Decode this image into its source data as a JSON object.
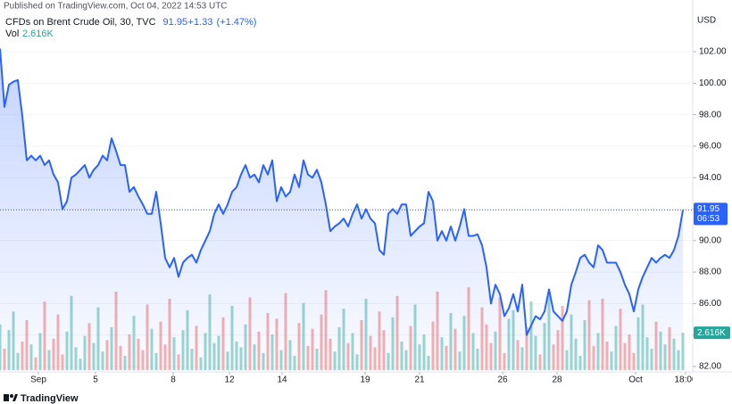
{
  "chart_data": {
    "type": "line",
    "publisher": "Published on TradingView.com, Oct 04, 2022 14:53 UTC",
    "title": "CFDs on Brent Crude Oil, 30, TVC",
    "change": "+1.33",
    "change_pct": "(+1.47%)",
    "countdown": "06:53",
    "y_unit": "USD",
    "brand": "TradingView",
    "xlim": [
      0,
      155
    ],
    "xticks": [
      {
        "value": 8.6,
        "label": "Sep"
      },
      {
        "value": 21.4,
        "label": "5"
      },
      {
        "value": 38.8,
        "label": "8"
      },
      {
        "value": 51.4,
        "label": "12"
      },
      {
        "value": 63.2,
        "label": "14"
      },
      {
        "value": 81.8,
        "label": "19"
      },
      {
        "value": 94,
        "label": "21"
      },
      {
        "value": 112.6,
        "label": "26"
      },
      {
        "value": 124.8,
        "label": "28"
      },
      {
        "value": 142.4,
        "label": "Oct"
      },
      {
        "value": 153.6,
        "label": "18:00"
      }
    ],
    "ylim": [
      81.77,
      104.44
    ],
    "yticks": [
      {
        "value": 82,
        "label": "82.00"
      },
      {
        "value": 84,
        "label": "84.00"
      },
      {
        "value": 86,
        "label": "86.00"
      },
      {
        "value": 88,
        "label": "88.00"
      },
      {
        "value": 90,
        "label": "90.00"
      },
      {
        "value": 92,
        "label": "92.00"
      },
      {
        "value": 94,
        "label": "94.00"
      },
      {
        "value": 96,
        "label": "96.00"
      },
      {
        "value": 98,
        "label": "98.00"
      },
      {
        "value": 100,
        "label": "100.00"
      },
      {
        "value": 102,
        "label": "102.00"
      }
    ],
    "series": [
      {
        "name": "Brent",
        "color": "#2962ff",
        "values": [
          102.2,
          98.5,
          99.9,
          100.1,
          100.2,
          97.9,
          95.1,
          95.4,
          95.1,
          95.4,
          94.8,
          95.1,
          94.2,
          93.7,
          92.0,
          92.5,
          94.0,
          94.2,
          94.5,
          94.8,
          94.0,
          94.5,
          94.8,
          95.4,
          95.1,
          96.5,
          95.7,
          94.8,
          94.8,
          93.1,
          93.4,
          92.8,
          92.3,
          91.7,
          91.7,
          93.1,
          91.1,
          88.9,
          88.3,
          88.9,
          87.7,
          88.6,
          88.9,
          89.1,
          88.6,
          89.4,
          90.0,
          90.6,
          91.7,
          92.3,
          91.7,
          92.3,
          93.1,
          93.4,
          94.2,
          94.8,
          94.0,
          94.2,
          93.7,
          94.8,
          94.2,
          95.1,
          92.5,
          93.4,
          92.8,
          93.1,
          94.2,
          93.4,
          95.1,
          94.2,
          94.0,
          94.5,
          93.7,
          92.3,
          90.6,
          90.9,
          91.1,
          91.4,
          90.9,
          91.7,
          92.3,
          91.4,
          92.0,
          91.4,
          91.1,
          89.4,
          89.1,
          91.7,
          92.0,
          91.7,
          92.3,
          92.3,
          90.3,
          90.6,
          90.9,
          91.1,
          93.1,
          92.5,
          90.0,
          90.6,
          90.0,
          90.9,
          90.0,
          90.9,
          92.0,
          90.3,
          90.3,
          90.4,
          89.7,
          88.3,
          86.0,
          87.2,
          86.6,
          85.2,
          85.7,
          86.6,
          85.5,
          87.2,
          84.0,
          84.6,
          85.2,
          85.0,
          85.5,
          86.9,
          85.5,
          85.2,
          84.9,
          85.5,
          87.2,
          88.0,
          88.9,
          89.1,
          88.6,
          88.3,
          89.7,
          89.4,
          88.6,
          88.6,
          88.6,
          88.0,
          87.2,
          86.6,
          85.5,
          86.9,
          87.7,
          88.3,
          88.9,
          88.6,
          88.9,
          89.1,
          88.9,
          89.4,
          90.3,
          91.95
        ]
      }
    ],
    "volume": {
      "name": "Vol",
      "ylim": [
        0,
        25
      ],
      "up_color": "#26a69a",
      "down_color": "#ef5350",
      "last_label": "2.616K",
      "values": [
        3.2,
        1.5,
        2.8,
        4.1,
        1.2,
        2.0,
        3.5,
        1.8,
        0.9,
        2.6,
        4.8,
        1.4,
        2.2,
        3.9,
        1.1,
        2.7,
        5.2,
        1.6,
        0.8,
        2.4,
        3.3,
        1.9,
        4.4,
        1.3,
        2.1,
        3.0,
        5.5,
        1.7,
        1.0,
        2.5,
        3.8,
        2.2,
        1.4,
        4.6,
        2.9,
        1.2,
        3.4,
        1.8,
        5.0,
        2.3,
        1.1,
        2.8,
        4.2,
        1.5,
        3.1,
        0.9,
        2.6,
        5.3,
        1.9,
        2.4,
        3.7,
        1.3,
        4.5,
        2.0,
        1.6,
        3.2,
        5.1,
        1.8,
        2.7,
        1.2,
        4.0,
        2.5,
        3.6,
        1.4,
        5.4,
        2.1,
        1.0,
        3.3,
        4.7,
        1.7,
        2.9,
        1.5,
        3.9,
        5.6,
        2.2,
        1.3,
        3.0,
        4.3,
        1.9,
        2.6,
        1.1,
        3.5,
        5.0,
        2.4,
        1.6,
        4.1,
        2.8,
        1.2,
        3.7,
        5.2,
        2.0,
        1.4,
        3.1,
        4.6,
        1.8,
        2.5,
        1.0,
        3.4,
        5.5,
        2.3,
        1.7,
        4.0,
        2.9,
        1.3,
        3.8,
        5.8,
        2.6,
        1.5,
        4.4,
        3.2,
        1.9,
        2.7,
        5.1,
        1.2,
        3.6,
        4.2,
        2.1,
        1.6,
        3.0,
        4.8,
        2.4,
        1.1,
        3.3,
        5.3,
        1.8,
        2.8,
        4.5,
        1.4,
        3.9,
        2.2,
        1.0,
        3.5,
        4.9,
        1.7,
        2.6,
        5.0,
        2.0,
        1.3,
        3.1,
        4.3,
        1.9,
        2.5,
        1.2,
        3.7,
        4.6,
        2.3,
        1.5,
        3.4,
        2.7,
        1.8,
        3.0,
        2.2,
        1.4,
        2.616
      ]
    }
  }
}
